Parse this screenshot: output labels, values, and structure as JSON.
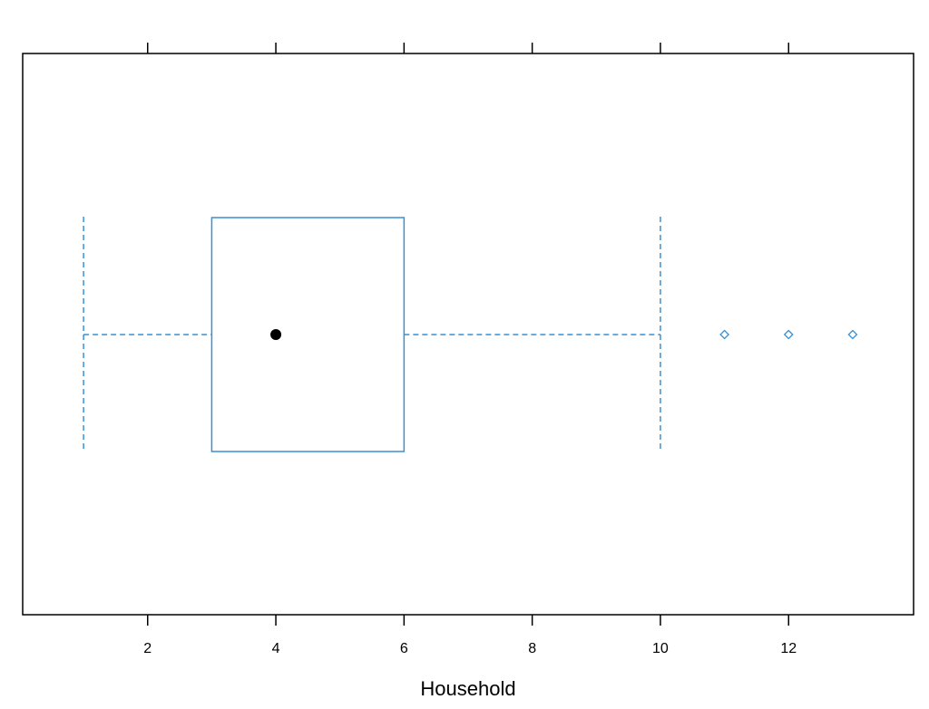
{
  "chart_data": {
    "type": "boxplot",
    "xlabel": "Household",
    "ylabel": "",
    "title": "",
    "xlim": [
      0.05,
      13.95
    ],
    "x_ticks": [
      2,
      4,
      6,
      8,
      10,
      12
    ],
    "x_tick_labels": [
      "2",
      "4",
      "6",
      "8",
      "10",
      "12"
    ],
    "box": {
      "whisker_low": 1,
      "q1": 3,
      "median": 4,
      "q3": 6,
      "whisker_high": 10,
      "outliers": [
        11,
        12,
        13
      ]
    },
    "grid": false,
    "colors": {
      "box": "#3891d6",
      "median_dot": "#000000",
      "axis": "#000000"
    }
  }
}
